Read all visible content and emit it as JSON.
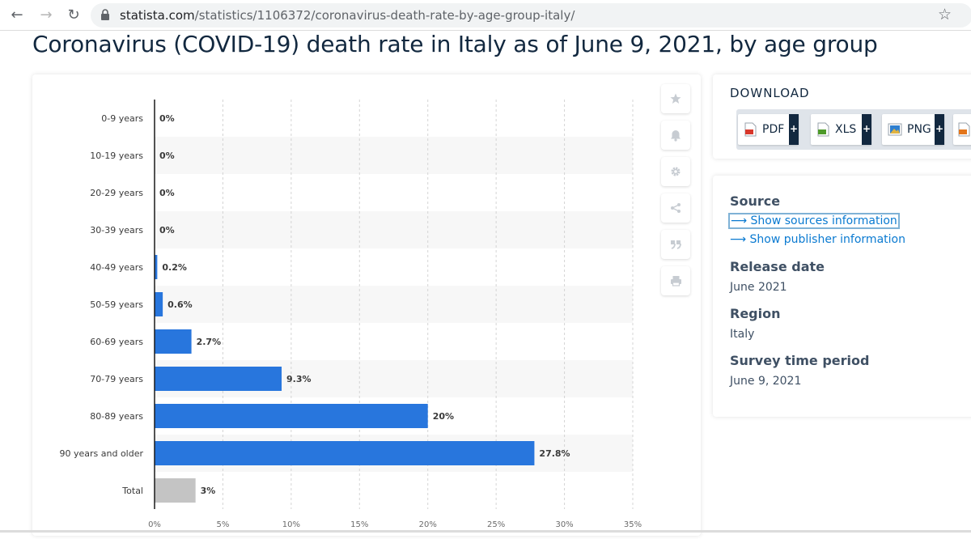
{
  "browser": {
    "url_domain": "statista.com",
    "url_path": "/statistics/1106372/coronavirus-death-rate-by-age-group-italy/"
  },
  "page": {
    "title": "Coronavirus (COVID-19) death rate in Italy as of June 9, 2021, by age group"
  },
  "download": {
    "title": "DOWNLOAD",
    "buttons": [
      {
        "label": "PDF",
        "icon": "pdf-file-icon",
        "color": "#d8372b"
      },
      {
        "label": "XLS",
        "icon": "xls-file-icon",
        "color": "#4e9a2a"
      },
      {
        "label": "PNG",
        "icon": "png-file-icon",
        "color": "#2f7fcf"
      },
      {
        "label": "",
        "icon": "ppt-file-icon",
        "color": "#e3761c"
      }
    ]
  },
  "info": {
    "source_heading": "Source",
    "show_sources": "Show sources information",
    "show_publisher": "Show publisher information",
    "release_heading": "Release date",
    "release_value": "June 2021",
    "region_heading": "Region",
    "region_value": "Italy",
    "survey_heading": "Survey time period",
    "survey_value": "June 9, 2021"
  },
  "tools": [
    "star-icon",
    "bell-icon",
    "gear-icon",
    "share-icon",
    "quote-icon",
    "print-icon"
  ],
  "chart_data": {
    "type": "bar",
    "orientation": "horizontal",
    "categories": [
      "0-9 years",
      "10-19 years",
      "20-29 years",
      "30-39 years",
      "40-49 years",
      "50-59 years",
      "60-69 years",
      "70-79 years",
      "80-89 years",
      "90 years and older",
      "Total"
    ],
    "values": [
      0,
      0,
      0,
      0,
      0.2,
      0.6,
      2.7,
      9.3,
      20,
      27.8,
      3
    ],
    "value_labels": [
      "0%",
      "0%",
      "0%",
      "0%",
      "0.2%",
      "0.6%",
      "2.7%",
      "9.3%",
      "20%",
      "27.8%",
      "3%"
    ],
    "xticks": [
      "0%",
      "5%",
      "10%",
      "15%",
      "20%",
      "25%",
      "30%",
      "35%"
    ],
    "xlim": [
      0,
      35
    ],
    "grid": true,
    "colors": {
      "bar": "#2876dd",
      "total": "#c4c4c4",
      "axis": "#1a1a1a",
      "grid": "#d4d4d4",
      "stripe": "#f7f7f7"
    }
  }
}
